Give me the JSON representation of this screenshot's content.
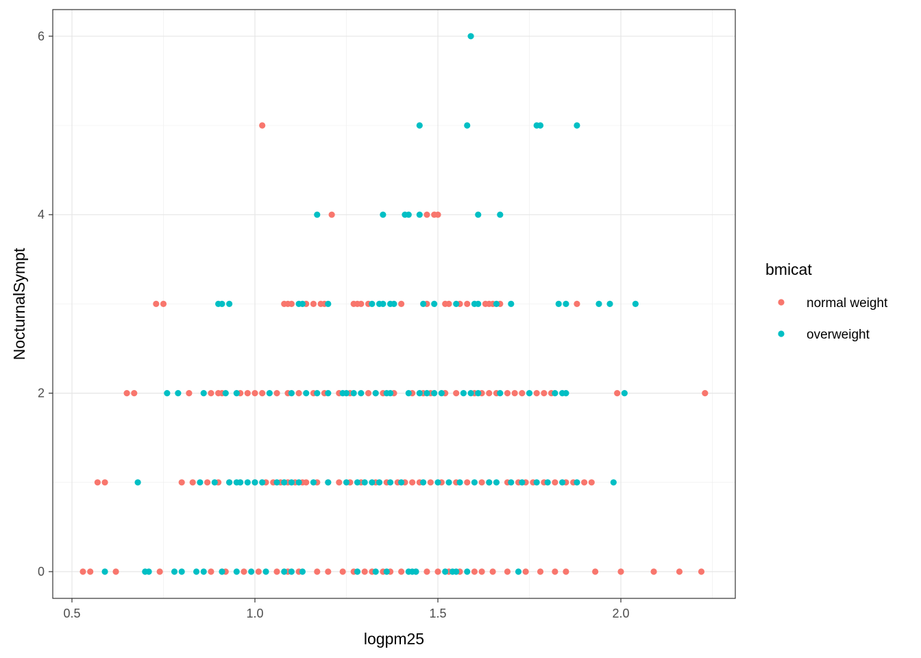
{
  "chart_data": {
    "type": "scatter",
    "xlabel": "logpm25",
    "ylabel": "NocturnalSympt",
    "xlim": [
      0.46,
      2.33
    ],
    "ylim": [
      -0.3,
      6.3
    ],
    "xticks": [
      {
        "value": 0.5,
        "label": "0.5"
      },
      {
        "value": 1.0,
        "label": "1.0"
      },
      {
        "value": 1.5,
        "label": "1.5"
      },
      {
        "value": 2.0,
        "label": "2.0"
      }
    ],
    "yticks": [
      {
        "value": 0,
        "label": "0"
      },
      {
        "value": 2,
        "label": "2"
      },
      {
        "value": 4,
        "label": "4"
      },
      {
        "value": 6,
        "label": "6"
      }
    ],
    "grid": true,
    "legend": {
      "title": "bmicat",
      "placement": "right",
      "entries": [
        {
          "label": "normal weight",
          "color": "#F8766D"
        },
        {
          "label": "overweight",
          "color": "#00BFC4"
        }
      ]
    },
    "series": [
      {
        "name": "normal weight",
        "color": "#F8766D",
        "points": [
          [
            1.02,
            5
          ],
          [
            1.21,
            4
          ],
          [
            1.47,
            4
          ],
          [
            1.5,
            4
          ],
          [
            1.49,
            4
          ],
          [
            0.73,
            3
          ],
          [
            0.75,
            3
          ],
          [
            1.08,
            3
          ],
          [
            1.09,
            3
          ],
          [
            1.1,
            3
          ],
          [
            1.14,
            3
          ],
          [
            1.16,
            3
          ],
          [
            1.18,
            3
          ],
          [
            1.19,
            3
          ],
          [
            1.27,
            3
          ],
          [
            1.28,
            3
          ],
          [
            1.29,
            3
          ],
          [
            1.31,
            3
          ],
          [
            1.4,
            3
          ],
          [
            1.47,
            3
          ],
          [
            1.52,
            3
          ],
          [
            1.53,
            3
          ],
          [
            1.56,
            3
          ],
          [
            1.58,
            3
          ],
          [
            1.63,
            3
          ],
          [
            1.64,
            3
          ],
          [
            1.65,
            3
          ],
          [
            1.67,
            3
          ],
          [
            1.88,
            3
          ],
          [
            0.65,
            2
          ],
          [
            0.67,
            2
          ],
          [
            0.82,
            2
          ],
          [
            0.88,
            2
          ],
          [
            0.9,
            2
          ],
          [
            0.91,
            2
          ],
          [
            0.96,
            2
          ],
          [
            0.98,
            2
          ],
          [
            1.0,
            2
          ],
          [
            1.02,
            2
          ],
          [
            1.06,
            2
          ],
          [
            1.09,
            2
          ],
          [
            1.12,
            2
          ],
          [
            1.16,
            2
          ],
          [
            1.19,
            2
          ],
          [
            1.23,
            2
          ],
          [
            1.26,
            2
          ],
          [
            1.31,
            2
          ],
          [
            1.33,
            2
          ],
          [
            1.35,
            2
          ],
          [
            1.38,
            2
          ],
          [
            1.43,
            2
          ],
          [
            1.46,
            2
          ],
          [
            1.48,
            2
          ],
          [
            1.52,
            2
          ],
          [
            1.55,
            2
          ],
          [
            1.6,
            2
          ],
          [
            1.62,
            2
          ],
          [
            1.64,
            2
          ],
          [
            1.66,
            2
          ],
          [
            1.69,
            2
          ],
          [
            1.71,
            2
          ],
          [
            1.73,
            2
          ],
          [
            1.77,
            2
          ],
          [
            1.79,
            2
          ],
          [
            1.81,
            2
          ],
          [
            1.99,
            2
          ],
          [
            2.23,
            2
          ],
          [
            0.57,
            1
          ],
          [
            0.59,
            1
          ],
          [
            0.8,
            1
          ],
          [
            0.83,
            1
          ],
          [
            0.87,
            1
          ],
          [
            0.9,
            1
          ],
          [
            0.93,
            1
          ],
          [
            0.96,
            1
          ],
          [
            1.0,
            1
          ],
          [
            1.03,
            1
          ],
          [
            1.05,
            1
          ],
          [
            1.07,
            1
          ],
          [
            1.09,
            1
          ],
          [
            1.11,
            1
          ],
          [
            1.13,
            1
          ],
          [
            1.14,
            1
          ],
          [
            1.17,
            1
          ],
          [
            1.2,
            1
          ],
          [
            1.23,
            1
          ],
          [
            1.26,
            1
          ],
          [
            1.29,
            1
          ],
          [
            1.33,
            1
          ],
          [
            1.36,
            1
          ],
          [
            1.39,
            1
          ],
          [
            1.41,
            1
          ],
          [
            1.43,
            1
          ],
          [
            1.45,
            1
          ],
          [
            1.48,
            1
          ],
          [
            1.51,
            1
          ],
          [
            1.55,
            1
          ],
          [
            1.58,
            1
          ],
          [
            1.62,
            1
          ],
          [
            1.64,
            1
          ],
          [
            1.69,
            1
          ],
          [
            1.72,
            1
          ],
          [
            1.74,
            1
          ],
          [
            1.76,
            1
          ],
          [
            1.79,
            1
          ],
          [
            1.82,
            1
          ],
          [
            1.85,
            1
          ],
          [
            1.87,
            1
          ],
          [
            1.9,
            1
          ],
          [
            1.92,
            1
          ],
          [
            0.53,
            0
          ],
          [
            0.55,
            0
          ],
          [
            0.62,
            0
          ],
          [
            0.74,
            0
          ],
          [
            0.88,
            0
          ],
          [
            0.92,
            0
          ],
          [
            0.97,
            0
          ],
          [
            1.01,
            0
          ],
          [
            1.06,
            0
          ],
          [
            1.09,
            0
          ],
          [
            1.12,
            0
          ],
          [
            1.17,
            0
          ],
          [
            1.2,
            0
          ],
          [
            1.24,
            0
          ],
          [
            1.27,
            0
          ],
          [
            1.3,
            0
          ],
          [
            1.32,
            0
          ],
          [
            1.35,
            0
          ],
          [
            1.37,
            0
          ],
          [
            1.4,
            0
          ],
          [
            1.44,
            0
          ],
          [
            1.47,
            0
          ],
          [
            1.5,
            0
          ],
          [
            1.53,
            0
          ],
          [
            1.56,
            0
          ],
          [
            1.6,
            0
          ],
          [
            1.62,
            0
          ],
          [
            1.65,
            0
          ],
          [
            1.69,
            0
          ],
          [
            1.74,
            0
          ],
          [
            1.78,
            0
          ],
          [
            1.82,
            0
          ],
          [
            1.85,
            0
          ],
          [
            1.93,
            0
          ],
          [
            2.0,
            0
          ],
          [
            2.09,
            0
          ],
          [
            2.16,
            0
          ],
          [
            2.22,
            0
          ]
        ]
      },
      {
        "name": "overweight",
        "color": "#00BFC4",
        "points": [
          [
            1.59,
            6
          ],
          [
            1.45,
            5
          ],
          [
            1.58,
            5
          ],
          [
            1.77,
            5
          ],
          [
            1.78,
            5
          ],
          [
            1.88,
            5
          ],
          [
            1.17,
            4
          ],
          [
            1.35,
            4
          ],
          [
            1.41,
            4
          ],
          [
            1.42,
            4
          ],
          [
            1.45,
            4
          ],
          [
            1.61,
            4
          ],
          [
            1.67,
            4
          ],
          [
            0.9,
            3
          ],
          [
            0.91,
            3
          ],
          [
            0.93,
            3
          ],
          [
            1.12,
            3
          ],
          [
            1.13,
            3
          ],
          [
            1.2,
            3
          ],
          [
            1.32,
            3
          ],
          [
            1.34,
            3
          ],
          [
            1.35,
            3
          ],
          [
            1.37,
            3
          ],
          [
            1.38,
            3
          ],
          [
            1.46,
            3
          ],
          [
            1.49,
            3
          ],
          [
            1.55,
            3
          ],
          [
            1.6,
            3
          ],
          [
            1.61,
            3
          ],
          [
            1.66,
            3
          ],
          [
            1.7,
            3
          ],
          [
            1.83,
            3
          ],
          [
            1.85,
            3
          ],
          [
            1.94,
            3
          ],
          [
            1.97,
            3
          ],
          [
            2.04,
            3
          ],
          [
            0.76,
            2
          ],
          [
            0.79,
            2
          ],
          [
            0.86,
            2
          ],
          [
            0.92,
            2
          ],
          [
            0.95,
            2
          ],
          [
            1.04,
            2
          ],
          [
            1.1,
            2
          ],
          [
            1.14,
            2
          ],
          [
            1.17,
            2
          ],
          [
            1.2,
            2
          ],
          [
            1.24,
            2
          ],
          [
            1.25,
            2
          ],
          [
            1.27,
            2
          ],
          [
            1.29,
            2
          ],
          [
            1.33,
            2
          ],
          [
            1.36,
            2
          ],
          [
            1.37,
            2
          ],
          [
            1.42,
            2
          ],
          [
            1.45,
            2
          ],
          [
            1.47,
            2
          ],
          [
            1.49,
            2
          ],
          [
            1.51,
            2
          ],
          [
            1.57,
            2
          ],
          [
            1.59,
            2
          ],
          [
            1.61,
            2
          ],
          [
            1.67,
            2
          ],
          [
            1.75,
            2
          ],
          [
            1.82,
            2
          ],
          [
            1.84,
            2
          ],
          [
            1.85,
            2
          ],
          [
            2.01,
            2
          ],
          [
            0.68,
            1
          ],
          [
            0.85,
            1
          ],
          [
            0.89,
            1
          ],
          [
            0.93,
            1
          ],
          [
            0.95,
            1
          ],
          [
            0.96,
            1
          ],
          [
            0.98,
            1
          ],
          [
            1.0,
            1
          ],
          [
            1.02,
            1
          ],
          [
            1.06,
            1
          ],
          [
            1.08,
            1
          ],
          [
            1.1,
            1
          ],
          [
            1.12,
            1
          ],
          [
            1.16,
            1
          ],
          [
            1.2,
            1
          ],
          [
            1.25,
            1
          ],
          [
            1.28,
            1
          ],
          [
            1.3,
            1
          ],
          [
            1.32,
            1
          ],
          [
            1.34,
            1
          ],
          [
            1.37,
            1
          ],
          [
            1.4,
            1
          ],
          [
            1.46,
            1
          ],
          [
            1.5,
            1
          ],
          [
            1.53,
            1
          ],
          [
            1.56,
            1
          ],
          [
            1.6,
            1
          ],
          [
            1.64,
            1
          ],
          [
            1.66,
            1
          ],
          [
            1.7,
            1
          ],
          [
            1.73,
            1
          ],
          [
            1.77,
            1
          ],
          [
            1.8,
            1
          ],
          [
            1.84,
            1
          ],
          [
            1.88,
            1
          ],
          [
            1.98,
            1
          ],
          [
            0.59,
            0
          ],
          [
            0.7,
            0
          ],
          [
            0.71,
            0
          ],
          [
            0.78,
            0
          ],
          [
            0.8,
            0
          ],
          [
            0.84,
            0
          ],
          [
            0.86,
            0
          ],
          [
            0.91,
            0
          ],
          [
            0.95,
            0
          ],
          [
            0.99,
            0
          ],
          [
            1.03,
            0
          ],
          [
            1.08,
            0
          ],
          [
            1.1,
            0
          ],
          [
            1.13,
            0
          ],
          [
            1.28,
            0
          ],
          [
            1.33,
            0
          ],
          [
            1.36,
            0
          ],
          [
            1.42,
            0
          ],
          [
            1.43,
            0
          ],
          [
            1.44,
            0
          ],
          [
            1.52,
            0
          ],
          [
            1.54,
            0
          ],
          [
            1.55,
            0
          ],
          [
            1.58,
            0
          ],
          [
            1.72,
            0
          ]
        ]
      }
    ]
  }
}
